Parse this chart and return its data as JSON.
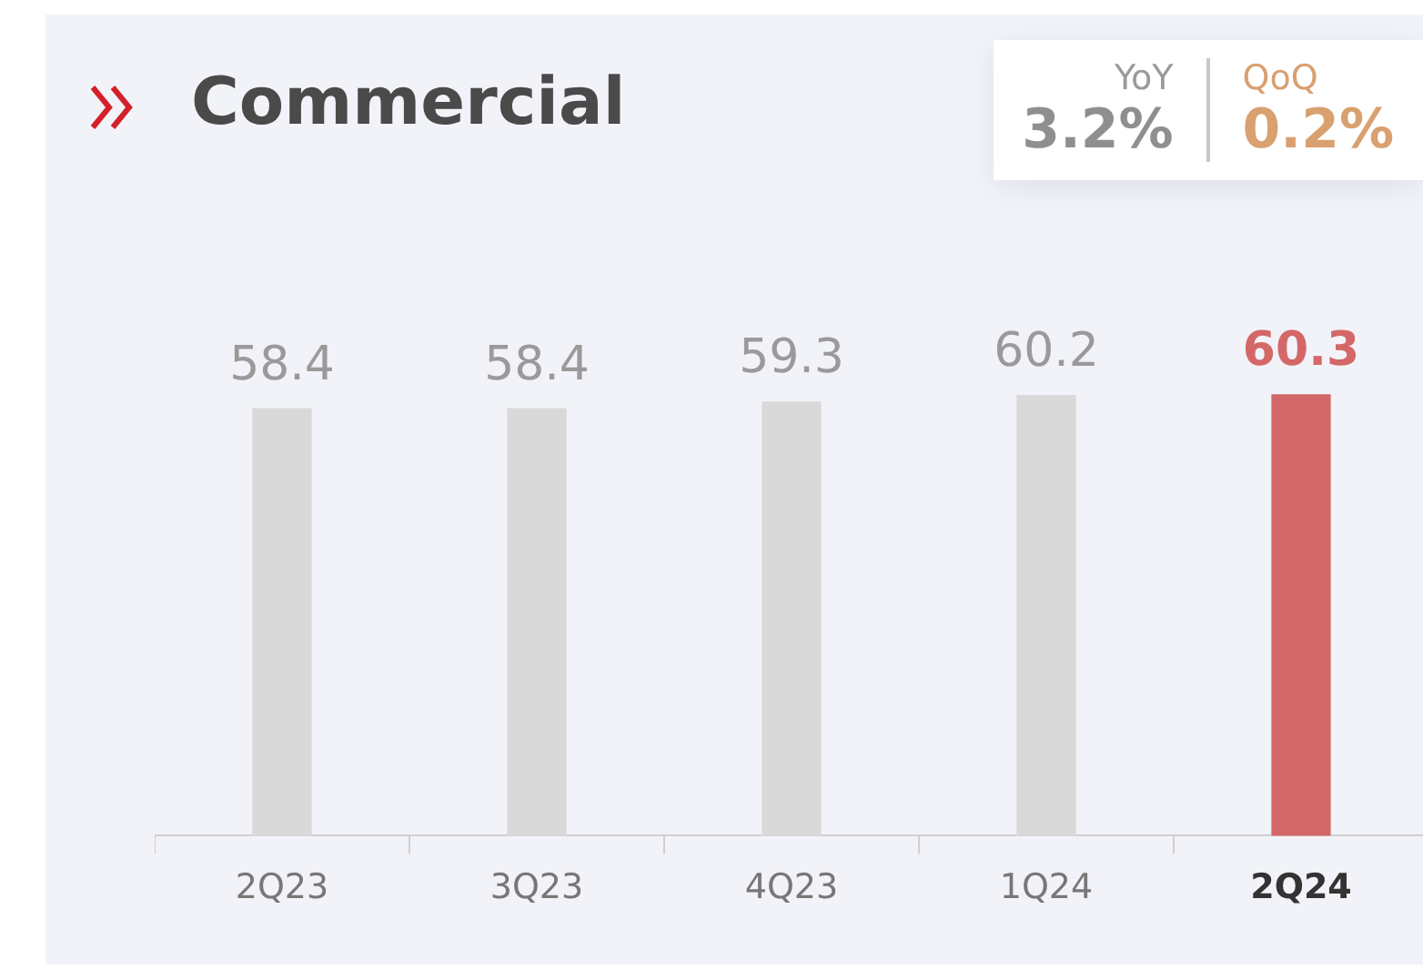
{
  "chart_data": {
    "type": "bar",
    "title": "Commercial",
    "categories": [
      "2Q23",
      "3Q23",
      "4Q23",
      "1Q24",
      "2Q24"
    ],
    "values": [
      58.4,
      58.4,
      59.3,
      60.2,
      60.3
    ],
    "colors": [
      "#d9d9d9",
      "#d9d9d9",
      "#d9d9d9",
      "#d9d9d9",
      "#d46868"
    ],
    "data_labels": true,
    "annotations": [
      "YoY",
      "3.2%",
      "QoQ",
      "0.2%"
    ]
  }
}
